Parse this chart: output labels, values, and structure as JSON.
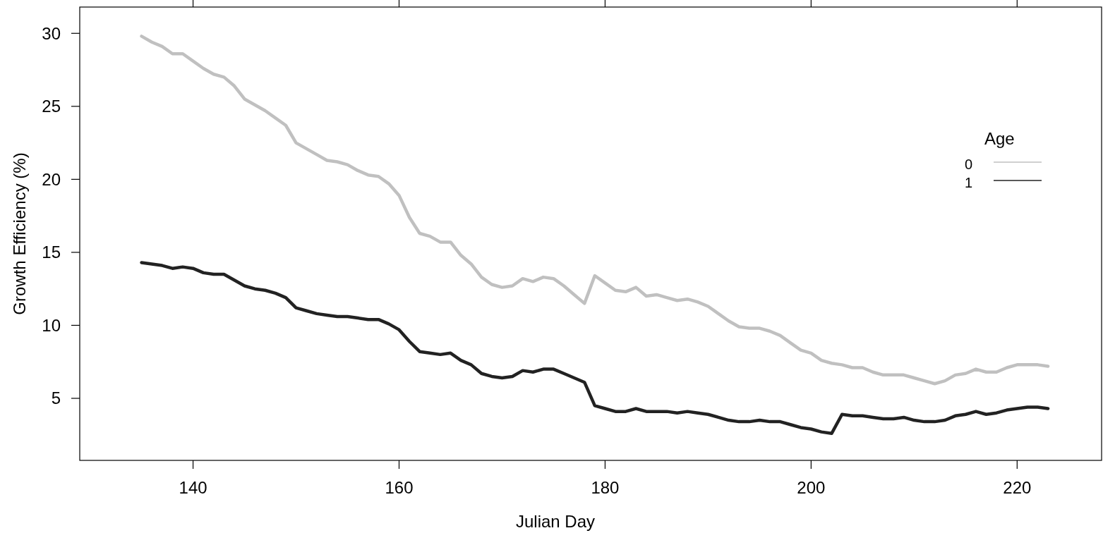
{
  "chart_data": {
    "type": "line",
    "xlabel": "Julian Day",
    "ylabel": "Growth Efficiency (%)",
    "legend_title": "Age",
    "legend": "top right",
    "grid": false,
    "line_style": "solid",
    "marker": "none",
    "x": [
      135,
      136,
      137,
      138,
      139,
      140,
      141,
      142,
      143,
      144,
      145,
      146,
      147,
      148,
      149,
      150,
      151,
      152,
      153,
      154,
      155,
      156,
      157,
      158,
      159,
      160,
      161,
      162,
      163,
      164,
      165,
      166,
      167,
      168,
      169,
      170,
      171,
      172,
      173,
      174,
      175,
      176,
      177,
      178,
      179,
      180,
      181,
      182,
      183,
      184,
      185,
      186,
      187,
      188,
      189,
      190,
      191,
      192,
      193,
      194,
      195,
      196,
      197,
      198,
      199,
      200,
      201,
      202,
      203,
      204,
      205,
      206,
      207,
      208,
      209,
      210,
      211,
      212,
      213,
      214,
      215,
      216,
      217,
      218,
      219,
      220,
      221,
      222,
      223
    ],
    "xlim": [
      129,
      228.2
    ],
    "xticks": [
      140,
      160,
      180,
      200,
      220
    ],
    "ylim": [
      0.75,
      31.8
    ],
    "yticks": [
      5,
      10,
      15,
      20,
      25,
      30
    ],
    "series": [
      {
        "name": "0",
        "color": "#c0c0c0",
        "values": [
          29.8,
          29.4,
          29.1,
          28.6,
          28.6,
          28.1,
          27.6,
          27.2,
          27.0,
          26.4,
          25.5,
          25.1,
          24.7,
          24.2,
          23.7,
          22.5,
          22.1,
          21.7,
          21.3,
          21.2,
          21.0,
          20.6,
          20.3,
          20.2,
          19.7,
          18.9,
          17.4,
          16.3,
          16.1,
          15.7,
          15.7,
          14.8,
          14.2,
          13.3,
          12.8,
          12.6,
          12.7,
          13.2,
          13.0,
          13.3,
          13.2,
          12.7,
          12.1,
          11.5,
          13.4,
          12.9,
          12.4,
          12.3,
          12.6,
          12.0,
          12.1,
          11.9,
          11.7,
          11.8,
          11.6,
          11.3,
          10.8,
          10.3,
          9.9,
          9.8,
          9.8,
          9.6,
          9.3,
          8.8,
          8.3,
          8.1,
          7.6,
          7.4,
          7.3,
          7.1,
          7.1,
          6.8,
          6.6,
          6.6,
          6.6,
          6.4,
          6.2,
          6.0,
          6.2,
          6.6,
          6.7,
          7.0,
          6.8,
          6.8,
          7.1,
          7.3,
          7.3,
          7.3,
          7.2
        ]
      },
      {
        "name": "1",
        "color": "#222222",
        "values": [
          14.3,
          14.2,
          14.1,
          13.9,
          14.0,
          13.9,
          13.6,
          13.5,
          13.5,
          13.1,
          12.7,
          12.5,
          12.4,
          12.2,
          11.9,
          11.2,
          11.0,
          10.8,
          10.7,
          10.6,
          10.6,
          10.5,
          10.4,
          10.4,
          10.1,
          9.7,
          8.9,
          8.2,
          8.1,
          8.0,
          8.1,
          7.6,
          7.3,
          6.7,
          6.5,
          6.4,
          6.5,
          6.9,
          6.8,
          7.0,
          7.0,
          6.7,
          6.4,
          6.1,
          4.5,
          4.3,
          4.1,
          4.1,
          4.3,
          4.1,
          4.1,
          4.1,
          4.0,
          4.1,
          4.0,
          3.9,
          3.7,
          3.5,
          3.4,
          3.4,
          3.5,
          3.4,
          3.4,
          3.2,
          3.0,
          2.9,
          2.7,
          2.6,
          3.9,
          3.8,
          3.8,
          3.7,
          3.6,
          3.6,
          3.7,
          3.5,
          3.4,
          3.4,
          3.5,
          3.8,
          3.9,
          4.1,
          3.9,
          4.0,
          4.2,
          4.3,
          4.4,
          4.4,
          4.3
        ]
      }
    ]
  }
}
